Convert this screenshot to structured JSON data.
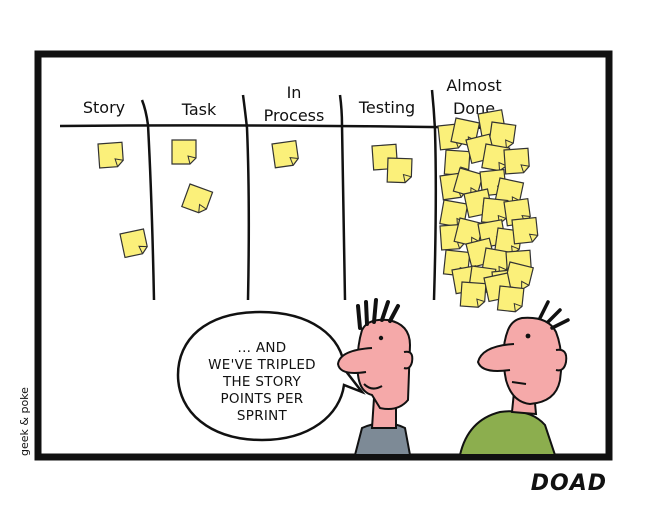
{
  "board": {
    "columns": [
      {
        "id": "story",
        "label_lines": [
          "Story"
        ]
      },
      {
        "id": "task",
        "label_lines": [
          "Task"
        ]
      },
      {
        "id": "in-process",
        "label_lines": [
          "In",
          "Process"
        ]
      },
      {
        "id": "testing",
        "label_lines": [
          "Testing"
        ]
      },
      {
        "id": "almost-done",
        "label_lines": [
          "Almost",
          "Done"
        ]
      }
    ],
    "note_color": "#fbf07a"
  },
  "speech": {
    "lines": [
      "... AND",
      "WE'VE TRIPLED",
      "THE STORY",
      "POINTS PER",
      "SPRINT"
    ]
  },
  "credit": "geek & poke",
  "caption": "DOAD"
}
